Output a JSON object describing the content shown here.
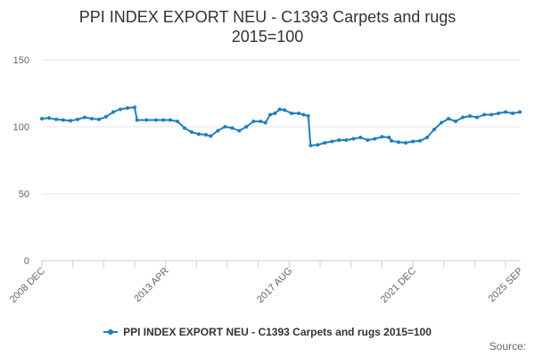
{
  "chart_data": {
    "type": "line",
    "title": "PPI INDEX EXPORT NEU - C1393 Carpets and rugs",
    "subtitle": "2015=100",
    "ylim": [
      0,
      150
    ],
    "yticks": [
      0,
      50,
      100,
      150
    ],
    "xlim": [
      "2008-12",
      "2025-09"
    ],
    "xtick_labels": [
      {
        "label": "2008 DEC",
        "date": "2008-12"
      },
      {
        "label": "2013 APR",
        "date": "2013-04"
      },
      {
        "label": "2017 AUG",
        "date": "2017-08"
      },
      {
        "label": "2021 DEC",
        "date": "2021-12"
      },
      {
        "label": "2025 SEP",
        "date": "2025-09"
      }
    ],
    "grid": true,
    "legend_position": "bottom",
    "series": [
      {
        "name": "PPI INDEX EXPORT NEU - C1393 Carpets and rugs 2015=100",
        "color": "#1f7fbf",
        "points": [
          [
            "2008-12",
            106
          ],
          [
            "2009-03",
            106.5
          ],
          [
            "2009-06",
            105.5
          ],
          [
            "2009-09",
            105
          ],
          [
            "2009-12",
            104.5
          ],
          [
            "2010-03",
            105.5
          ],
          [
            "2010-06",
            107
          ],
          [
            "2010-09",
            106
          ],
          [
            "2010-12",
            105.5
          ],
          [
            "2011-03",
            107.5
          ],
          [
            "2011-06",
            111
          ],
          [
            "2011-09",
            113
          ],
          [
            "2011-12",
            114
          ],
          [
            "2012-03",
            114.5
          ],
          [
            "2012-04",
            105
          ],
          [
            "2012-08",
            105
          ],
          [
            "2012-12",
            105
          ],
          [
            "2013-03",
            105
          ],
          [
            "2013-06",
            105
          ],
          [
            "2013-09",
            104
          ],
          [
            "2013-12",
            99
          ],
          [
            "2014-03",
            96
          ],
          [
            "2014-06",
            94.5
          ],
          [
            "2014-09",
            94
          ],
          [
            "2014-11",
            93
          ],
          [
            "2015-02",
            97
          ],
          [
            "2015-05",
            100
          ],
          [
            "2015-08",
            99
          ],
          [
            "2015-11",
            97
          ],
          [
            "2016-02",
            100
          ],
          [
            "2016-05",
            104
          ],
          [
            "2016-08",
            104
          ],
          [
            "2016-10",
            103
          ],
          [
            "2016-12",
            109
          ],
          [
            "2017-02",
            110
          ],
          [
            "2017-04",
            113
          ],
          [
            "2017-06",
            112.5
          ],
          [
            "2017-09",
            110
          ],
          [
            "2017-12",
            110
          ],
          [
            "2018-02",
            109
          ],
          [
            "2018-04",
            108
          ],
          [
            "2018-05",
            86
          ],
          [
            "2018-08",
            86.5
          ],
          [
            "2018-11",
            88
          ],
          [
            "2019-02",
            89
          ],
          [
            "2019-05",
            90
          ],
          [
            "2019-08",
            90
          ],
          [
            "2019-11",
            91
          ],
          [
            "2020-02",
            92
          ],
          [
            "2020-05",
            90
          ],
          [
            "2020-08",
            91
          ],
          [
            "2020-11",
            92.5
          ],
          [
            "2021-02",
            92
          ],
          [
            "2021-03",
            89.5
          ],
          [
            "2021-06",
            88.5
          ],
          [
            "2021-09",
            88
          ],
          [
            "2021-12",
            89
          ],
          [
            "2022-03",
            89.5
          ],
          [
            "2022-06",
            92
          ],
          [
            "2022-09",
            98
          ],
          [
            "2022-12",
            103
          ],
          [
            "2023-03",
            106
          ],
          [
            "2023-06",
            104
          ],
          [
            "2023-09",
            107
          ],
          [
            "2023-12",
            108
          ],
          [
            "2024-03",
            107
          ],
          [
            "2024-06",
            109
          ],
          [
            "2024-09",
            109
          ],
          [
            "2024-12",
            110
          ],
          [
            "2025-03",
            111
          ],
          [
            "2025-06",
            110
          ],
          [
            "2025-09",
            111
          ]
        ]
      }
    ]
  },
  "source_label": "Source:"
}
